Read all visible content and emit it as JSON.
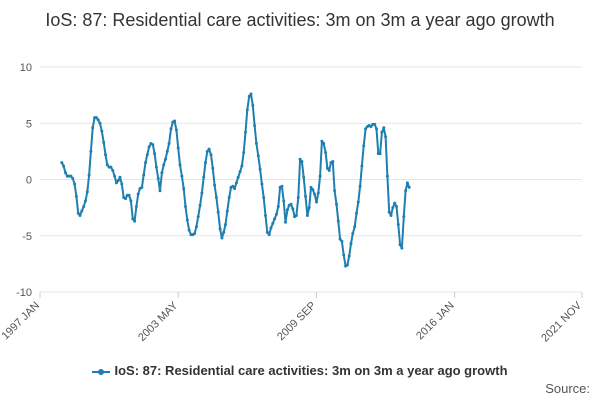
{
  "colors": {
    "series": "#1f7fb0",
    "grid": "#e6e6e6",
    "axis_text": "#555555"
  },
  "source_label": "Source:",
  "chart_data": {
    "type": "line",
    "title": "IoS: 87: Residential care activities: 3m on 3m a year ago growth",
    "xlabel": "",
    "ylabel": "",
    "ylim": [
      -10,
      10
    ],
    "yticks": [
      -10,
      -5,
      0,
      5,
      10
    ],
    "x_start": "1997-01",
    "x_end": "2021-11",
    "xticks": [
      {
        "label": "1997 JAN",
        "date": "1997-01"
      },
      {
        "label": "2003 MAY",
        "date": "2003-05"
      },
      {
        "label": "2009 SEP",
        "date": "2009-09"
      },
      {
        "label": "2016 JAN",
        "date": "2016-01"
      },
      {
        "label": "2021 NOV",
        "date": "2021-11"
      }
    ],
    "grid": true,
    "legend_position": "bottom",
    "series": [
      {
        "name": "IoS: 87: Residential care activities: 3m on 3m a year ago growth",
        "start": "1998-01",
        "values": [
          1.5,
          1.2,
          0.6,
          0.3,
          0.3,
          0.3,
          0.1,
          -0.4,
          -1.5,
          -3.0,
          -3.2,
          -2.8,
          -2.4,
          -1.9,
          -1.1,
          0.4,
          2.5,
          4.6,
          5.5,
          5.5,
          5.3,
          5.0,
          4.3,
          3.3,
          2.2,
          1.3,
          1.1,
          1.1,
          0.8,
          0.3,
          -0.3,
          -0.1,
          0.2,
          -0.4,
          -1.6,
          -1.7,
          -1.4,
          -1.4,
          -1.9,
          -3.5,
          -3.7,
          -2.4,
          -1.3,
          -0.8,
          -0.7,
          0.4,
          1.5,
          2.2,
          2.9,
          3.2,
          3.1,
          2.3,
          1.1,
          0.1,
          -1.0,
          0.6,
          1.3,
          1.8,
          2.5,
          3.2,
          4.5,
          5.1,
          5.2,
          4.4,
          2.8,
          1.3,
          0.3,
          -0.8,
          -2.4,
          -3.6,
          -4.5,
          -4.9,
          -4.9,
          -4.8,
          -4.2,
          -3.3,
          -2.3,
          -1.2,
          0.2,
          1.5,
          2.5,
          2.7,
          2.2,
          1.0,
          -0.5,
          -1.6,
          -2.9,
          -4.4,
          -5.2,
          -4.7,
          -4.0,
          -2.8,
          -1.6,
          -0.7,
          -0.6,
          -0.8,
          -0.3,
          0.2,
          0.7,
          1.2,
          2.4,
          4.2,
          6.2,
          7.4,
          7.6,
          6.6,
          4.8,
          3.2,
          2.1,
          0.9,
          -0.4,
          -1.6,
          -3.2,
          -4.7,
          -4.9,
          -4.3,
          -3.9,
          -3.5,
          -3.1,
          -2.4,
          -0.7,
          -0.6,
          -1.9,
          -3.8,
          -2.7,
          -2.3,
          -2.2,
          -2.6,
          -3.3,
          -3.2,
          -1.6,
          1.8,
          1.6,
          0.2,
          -1.5,
          -3.2,
          -2.5,
          -0.7,
          -0.9,
          -1.3,
          -2.0,
          -1.2,
          0.3,
          3.4,
          3.2,
          2.4,
          1.0,
          0.8,
          1.5,
          1.6,
          -1.0,
          -2.2,
          -3.7,
          -5.3,
          -5.5,
          -6.7,
          -7.7,
          -7.6,
          -6.8,
          -5.7,
          -4.8,
          -4.2,
          -3.0,
          -2.0,
          -0.6,
          1.2,
          3.0,
          4.5,
          4.7,
          4.8,
          4.7,
          4.9,
          4.9,
          4.5,
          2.3,
          2.3,
          4.2,
          4.6,
          3.8,
          0.3,
          -2.9,
          -3.2,
          -2.5,
          -2.1,
          -2.4,
          -4.0,
          -5.8,
          -6.1,
          -3.3,
          -1.0,
          -0.3,
          -0.7
        ]
      }
    ]
  }
}
